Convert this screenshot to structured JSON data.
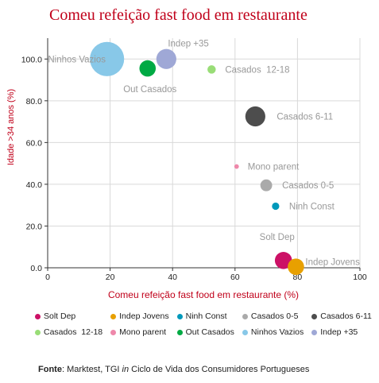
{
  "chart_data": {
    "type": "scatter",
    "title": "Comeu refeição fast food em restaurante",
    "xlabel": "Comeu refeição fast food em restaurante (%)",
    "ylabel": "Idade >34 anos (%)",
    "xlim": [
      0,
      100
    ],
    "ylim": [
      0,
      110
    ],
    "xticks": [
      0,
      20,
      40,
      60,
      80,
      100
    ],
    "yticks": [
      0,
      20,
      40,
      60,
      80,
      100
    ],
    "ytick_labels": [
      "0.0",
      "20.0",
      "40.0",
      "60.0",
      "80.0",
      "100.0"
    ],
    "grid": true,
    "legend_position": "bottom",
    "series": [
      {
        "name": "Solt Dep",
        "x": 75.5,
        "y": 3.5,
        "size": 5.5,
        "color": "#cc1166"
      },
      {
        "name": "Indep Jovens",
        "x": 79.5,
        "y": 0.5,
        "size": 5.0,
        "color": "#e8a000"
      },
      {
        "name": "Ninh Const",
        "x": 73.0,
        "y": 29.5,
        "size": 1.0,
        "color": "#0099bb"
      },
      {
        "name": "Casados 0-5",
        "x": 70.0,
        "y": 39.5,
        "size": 2.6,
        "color": "#aaaaaa"
      },
      {
        "name": "Casados 6-11",
        "x": 66.5,
        "y": 72.5,
        "size": 7.5,
        "color": "#4d4d4d"
      },
      {
        "name": "Casados  12-18",
        "x": 52.5,
        "y": 95.0,
        "size": 1.3,
        "color": "#99dd77"
      },
      {
        "name": "Mono parent",
        "x": 60.5,
        "y": 48.5,
        "size": 0.4,
        "color": "#ee88aa"
      },
      {
        "name": "Out Casados",
        "x": 32.0,
        "y": 95.5,
        "size": 5.0,
        "color": "#00aa44"
      },
      {
        "name": "Ninhos Vazios",
        "x": 19.0,
        "y": 100.0,
        "size": 22.0,
        "color": "#88c8e8"
      },
      {
        "name": "Indep +35",
        "x": 38.0,
        "y": 100.0,
        "size": 7.5,
        "color": "#9fa8d6"
      }
    ],
    "labels": [
      {
        "text": "Solt Dep",
        "series": 0
      },
      {
        "text": "Indep Jovens",
        "series": 1
      },
      {
        "text": "Ninh Const",
        "series": 2
      },
      {
        "text": "Casados 0-5",
        "series": 3
      },
      {
        "text": "Casados 6-11",
        "series": 4
      },
      {
        "text": "Casados  12-18",
        "series": 5
      },
      {
        "text": "Mono parent",
        "series": 6
      },
      {
        "text": "Out Casados",
        "series": 7
      },
      {
        "text": "Ninhos Vazios",
        "series": 8
      },
      {
        "text": "Indep +35",
        "series": 9
      }
    ]
  },
  "source": {
    "label": "Fonte",
    "text_a": ": Marktest, TGI ",
    "text_in": "in",
    "text_b": " Ciclo de Vida dos Consumidores Portugueses"
  }
}
